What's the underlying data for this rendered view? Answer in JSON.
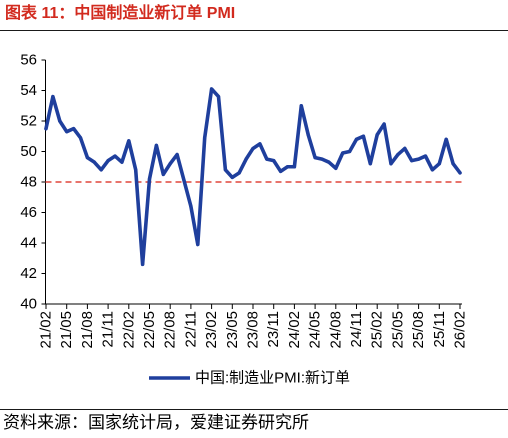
{
  "colors": {
    "title": "#d22a1e"
  },
  "chart_data": {
    "type": "line",
    "title": "图表 11：中国制造业新订单 PMI",
    "x": [
      "21/02",
      "21/03",
      "21/04",
      "21/05",
      "21/06",
      "21/07",
      "21/08",
      "21/09",
      "21/10",
      "21/11",
      "21/12",
      "22/01",
      "22/02",
      "22/03",
      "22/04",
      "22/05",
      "22/06",
      "22/07",
      "22/08",
      "22/09",
      "22/10",
      "22/11",
      "22/12",
      "23/01",
      "23/02",
      "23/03",
      "23/04",
      "23/05",
      "23/06",
      "23/07",
      "23/08",
      "23/09",
      "23/10",
      "23/11",
      "23/12",
      "24/01",
      "24/02",
      "24/03",
      "24/04",
      "24/05",
      "24/06",
      "24/07",
      "24/08",
      "24/09",
      "24/10",
      "24/11",
      "24/12",
      "25/01",
      "25/02",
      "25/03",
      "25/04",
      "25/05",
      "25/06",
      "25/07",
      "25/08",
      "25/09",
      "25/10",
      "25/11",
      "25/12",
      "26/01",
      "26/02"
    ],
    "xticks": [
      "21/02",
      "21/05",
      "21/08",
      "21/11",
      "22/02",
      "22/05",
      "22/08",
      "22/11",
      "23/02",
      "23/05",
      "23/08",
      "23/11",
      "24/02",
      "24/05",
      "24/08",
      "24/11",
      "25/02",
      "25/05",
      "25/08",
      "25/11",
      "26/02"
    ],
    "series": [
      {
        "name": "中国:制造业PMI:新订单",
        "color": "#1f3f9d",
        "values": [
          51.5,
          53.6,
          52.0,
          51.3,
          51.5,
          50.9,
          49.6,
          49.3,
          48.8,
          49.4,
          49.7,
          49.3,
          50.7,
          48.8,
          42.6,
          48.2,
          50.4,
          48.5,
          49.2,
          49.8,
          48.1,
          46.4,
          43.9,
          50.9,
          54.1,
          53.6,
          48.8,
          48.3,
          48.6,
          49.5,
          50.2,
          50.5,
          49.5,
          49.4,
          48.7,
          49.0,
          49.0,
          53.0,
          51.1,
          49.6,
          49.5,
          49.3,
          48.9,
          49.9,
          50.0,
          50.8,
          51.0,
          49.2,
          51.1,
          51.8,
          49.2,
          49.8,
          50.2,
          49.4,
          49.5,
          49.7,
          48.8,
          49.2,
          50.8,
          49.2,
          48.6
        ]
      }
    ],
    "ylim": [
      40,
      56
    ],
    "yticks": [
      40,
      42,
      44,
      46,
      48,
      50,
      52,
      54,
      56
    ],
    "reference_line": {
      "value": 48,
      "style": "dashed",
      "color": "#e0463c"
    },
    "grid": false,
    "legend": {
      "position": "bottom"
    }
  },
  "source": "资料来源：国家统计局，爱建证券研究所"
}
